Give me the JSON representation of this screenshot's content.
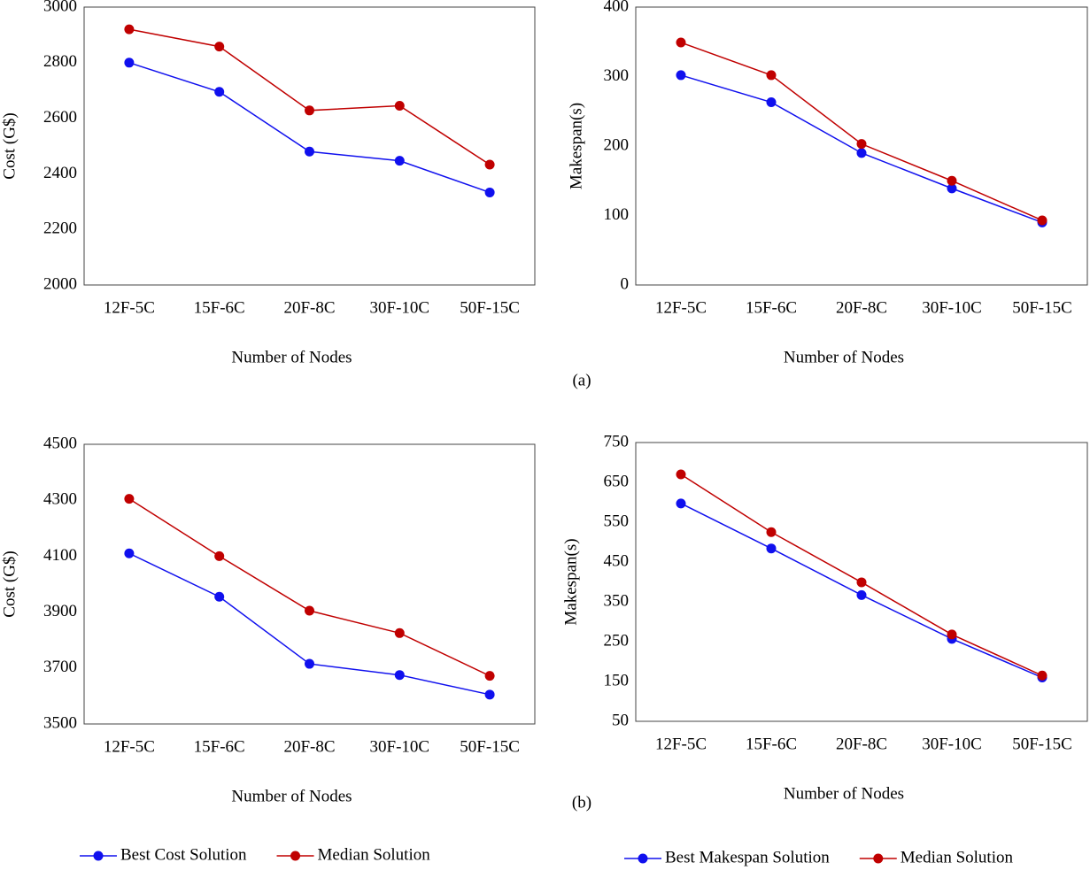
{
  "chart_data": [
    {
      "type": "line",
      "x_label": "Number of Nodes",
      "y_label": "Cost (G$)",
      "categories": [
        "12F-5C",
        "15F-6C",
        "20F-8C",
        "30F-10C",
        "50F-15C"
      ],
      "series": [
        {
          "color": "#1010ee",
          "values": [
            2800,
            2695,
            2480,
            2447,
            2333
          ]
        },
        {
          "color": "#c00000",
          "values": [
            2920,
            2858,
            2628,
            2645,
            2433
          ]
        }
      ],
      "ylim": [
        2000,
        3000
      ],
      "yticks": [
        2000,
        2200,
        2400,
        2600,
        2800,
        3000
      ],
      "grid": false
    },
    {
      "type": "line",
      "x_label": "Number of Nodes",
      "y_label": "Makespan(s)",
      "caption": "(a)",
      "categories": [
        "12F-5C",
        "15F-6C",
        "20F-8C",
        "30F-10C",
        "50F-15C"
      ],
      "series": [
        {
          "color": "#1010ee",
          "values": [
            302,
            263,
            190,
            139,
            90
          ]
        },
        {
          "color": "#c00000",
          "values": [
            349,
            302,
            203,
            150,
            93
          ]
        }
      ],
      "ylim": [
        0,
        400
      ],
      "yticks": [
        0,
        100,
        200,
        300,
        400
      ],
      "grid": false
    },
    {
      "type": "line",
      "x_label": "Number of Nodes",
      "y_label": "Cost (G$)",
      "categories": [
        "12F-5C",
        "15F-6C",
        "20F-8C",
        "30F-10C",
        "50F-15C"
      ],
      "series": [
        {
          "name": "Best Cost Solution",
          "color": "#1010ee",
          "values": [
            4110,
            3955,
            3715,
            3675,
            3605
          ]
        },
        {
          "name": "Median Solution",
          "color": "#c00000",
          "values": [
            4305,
            4100,
            3905,
            3825,
            3672
          ]
        }
      ],
      "ylim": [
        3500,
        4500
      ],
      "yticks": [
        3500,
        3700,
        3900,
        4100,
        4300,
        4500
      ],
      "grid": false,
      "legend": "bottom"
    },
    {
      "type": "line",
      "x_label": "Number of Nodes",
      "y_label": "Makespan(s)",
      "caption": "(b)",
      "categories": [
        "12F-5C",
        "15F-6C",
        "20F-8C",
        "30F-10C",
        "50F-15C"
      ],
      "series": [
        {
          "name": "Best Makespan Solution",
          "color": "#1010ee",
          "values": [
            597,
            484,
            367,
            257,
            160
          ]
        },
        {
          "name": "Median Solution",
          "color": "#c00000",
          "values": [
            670,
            525,
            399,
            268,
            165
          ]
        }
      ],
      "ylim": [
        50,
        750
      ],
      "yticks": [
        50,
        150,
        250,
        350,
        450,
        550,
        650,
        750
      ],
      "grid": false,
      "legend": "bottom"
    }
  ]
}
